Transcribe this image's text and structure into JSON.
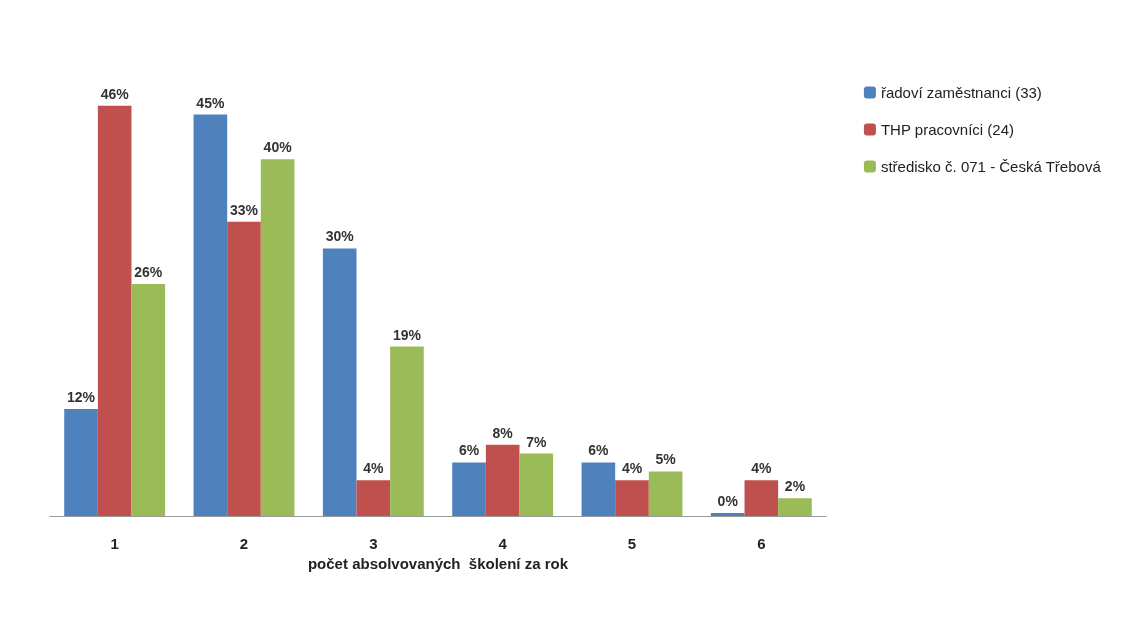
{
  "chart_data": {
    "type": "bar",
    "xlabel": "počet absolvovaných  školení za rok",
    "categories": [
      "1",
      "2",
      "3",
      "4",
      "5",
      "6"
    ],
    "series": [
      {
        "name": "řadoví zaměstnanci (33)",
        "color": "#4f81bd",
        "values": [
          12,
          45,
          30,
          6,
          6,
          0
        ],
        "value_labels": [
          "12%",
          "45%",
          "30%",
          "6%",
          "6%",
          "0%"
        ]
      },
      {
        "name": "THP pracovníci (24)",
        "color": "#c0504d",
        "values": [
          46,
          33,
          4,
          8,
          4,
          4
        ],
        "value_labels": [
          "46%",
          "33%",
          "4%",
          "8%",
          "4%",
          "4%"
        ]
      },
      {
        "name": "středisko č. 071 - Česká Třebová",
        "color": "#9bbb59",
        "values": [
          26,
          40,
          19,
          7,
          5,
          2
        ],
        "value_labels": [
          "26%",
          "40%",
          "19%",
          "7%",
          "5%",
          "2%"
        ]
      }
    ],
    "legend": "right"
  }
}
